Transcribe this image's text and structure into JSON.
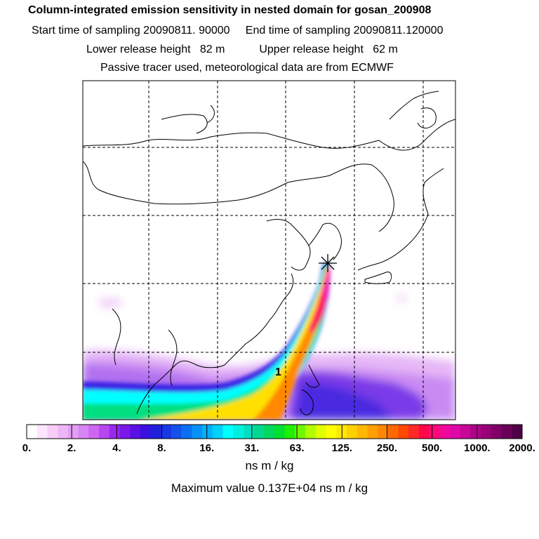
{
  "title": {
    "line1": "Column-integrated emission sensitivity in nested domain for gosan_200908",
    "line2": "Start time of sampling 20090811. 90000     End time of sampling 20090811.120000",
    "line3": "Lower release height   82 m           Upper release height   62 m",
    "line4": "Passive tracer used, meteorological data are from ECMWF"
  },
  "map": {
    "release_marker": "asterisk-icon",
    "cluster_label": "1",
    "colors": {
      "coastline": "#000000",
      "grid": "#000000",
      "plume_core": "#ff0000",
      "plume_outer": "#ffff00",
      "low_band": "#00ffff",
      "diffuse": "#cc88ff"
    }
  },
  "colorbar": {
    "labels": [
      "0.",
      "2.",
      "4.",
      "8.",
      "16.",
      "31.",
      "63.",
      "125.",
      "250.",
      "500.",
      "1000.",
      "2000."
    ],
    "colors": [
      "#ffffff",
      "#fde6fd",
      "#f7cdf8",
      "#efb6f6",
      "#e39ef5",
      "#d885f4",
      "#cc66f2",
      "#b847f1",
      "#9a28ee",
      "#7a18e8",
      "#5a10e4",
      "#3a10e0",
      "#2020dc",
      "#1838e6",
      "#1450ec",
      "#0a70f2",
      "#0890f6",
      "#00b0fa",
      "#00d0fc",
      "#00ffff",
      "#00f0e0",
      "#00e0c0",
      "#00d890",
      "#00d860",
      "#00e030",
      "#20f000",
      "#70f800",
      "#b0fc00",
      "#e0ff00",
      "#ffff00",
      "#ffe800",
      "#ffd000",
      "#ffb800",
      "#ffa000",
      "#ff8800",
      "#ff6800",
      "#ff4800",
      "#ff2828",
      "#ff0848",
      "#ff0878",
      "#f00898",
      "#e008a8",
      "#c80898",
      "#b00088",
      "#980078",
      "#800068",
      "#680058",
      "#500048"
    ],
    "units": "ns m / kg",
    "max_value": "Maximum value  0.137E+04 ns m / kg"
  }
}
